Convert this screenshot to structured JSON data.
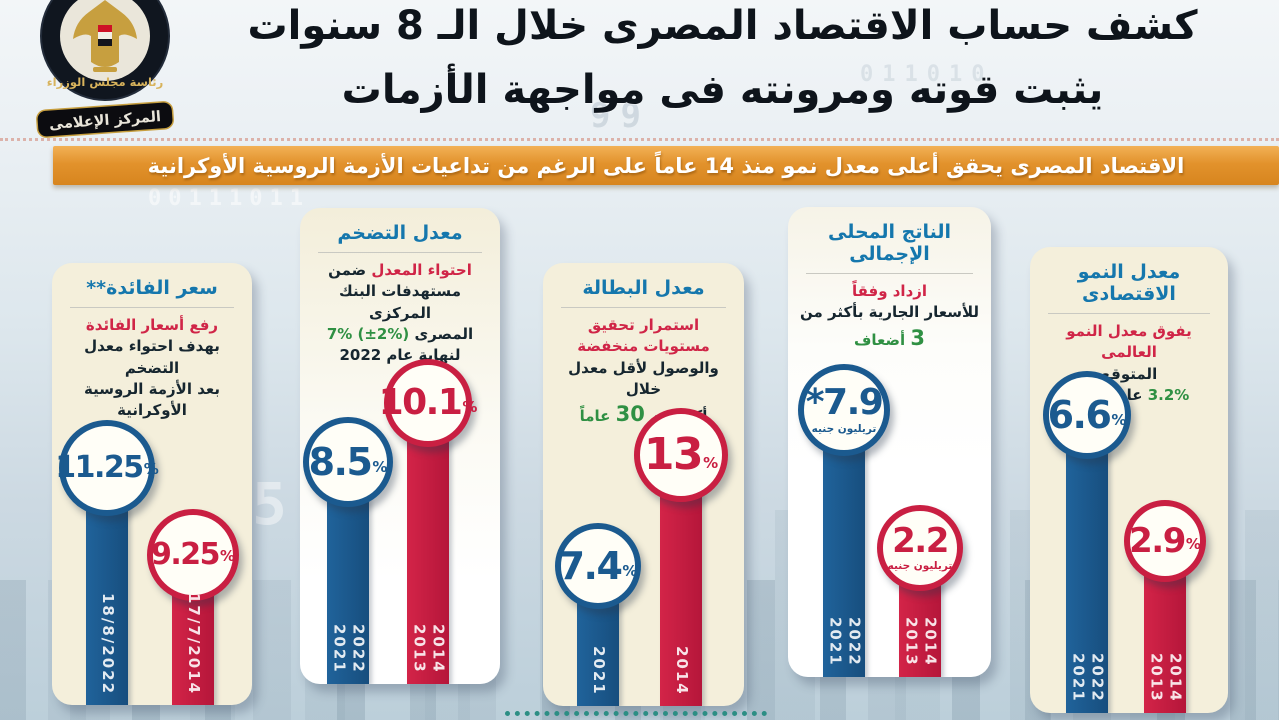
{
  "header": {
    "logo": {
      "ring_text": "رئاسة مجلس الوزراء",
      "ribbon_text": "المركز الإعلامى"
    },
    "title_line1": "كشف حساب الاقتصاد المصرى خلال الـ 8 سنوات",
    "title_line2": "يثبت قوته ومرونته فى مواجهة الأزمات",
    "banner_text": "الاقتصاد المصرى يحقق أعلى معدل نمو منذ 14 عاماً على الرغم من تداعيات الأزمة الروسية الأوكرانية"
  },
  "decor": {
    "digits": [
      "00111011",
      "99",
      "011010",
      "5"
    ]
  },
  "colors": {
    "blue": "#1b5a8f",
    "red": "#c91f42",
    "title_blue": "#1577ad",
    "green": "#2f9043",
    "orange_banner": "#e2922c",
    "card_cream": "#f4efdb"
  },
  "cards": [
    {
      "id": "interest-rate",
      "title": "سعر الفائدة**",
      "desc": [
        [
          {
            "t": "رفع أسعار الفائدة",
            "c": "red"
          }
        ],
        [
          {
            "t": "بهدف احتواء معدل التضخم",
            "c": "dark"
          }
        ],
        [
          {
            "t": "بعد الأزمة الروسية",
            "c": "dark"
          }
        ],
        [
          {
            "t": "الأوكرانية",
            "c": "dark"
          }
        ]
      ],
      "blue": {
        "value": "11.25",
        "suffix": "%",
        "years": [
          "18/8/2022"
        ]
      },
      "red": {
        "value": "9.25",
        "suffix": "%",
        "years": [
          "17/7/2014"
        ]
      }
    },
    {
      "id": "inflation-rate",
      "title": "معدل التضخم",
      "desc": [
        [
          {
            "t": "احتواء المعدل",
            "c": "red"
          },
          {
            "t": " ضمن",
            "c": "dark"
          }
        ],
        [
          {
            "t": "مستهدفات البنك المركزى",
            "c": "dark"
          }
        ],
        [
          {
            "t": "المصرى ",
            "c": "dark"
          },
          {
            "t": "7% (±2%)",
            "c": "green",
            "ltr": true
          }
        ],
        [
          {
            "t": "لنهاية عام 2022",
            "c": "dark"
          }
        ]
      ],
      "blue": {
        "value": "8.5",
        "suffix": "%",
        "years": [
          "2021",
          "2022"
        ]
      },
      "red": {
        "value": "10.1",
        "suffix": "%",
        "years": [
          "2013",
          "2014"
        ]
      }
    },
    {
      "id": "unemployment-rate",
      "title": "معدل البطالة",
      "desc": [
        [
          {
            "t": "استمرار تحقيق",
            "c": "red"
          }
        ],
        [
          {
            "t": "مستويات منخفضة",
            "c": "red"
          }
        ],
        [
          {
            "t": "والوصول لأقل معدل خلال",
            "c": "dark"
          }
        ],
        [
          {
            "t": "أكثر من ",
            "c": "dark"
          },
          {
            "t": "30",
            "c": "green big"
          },
          {
            "t": " عاماً",
            "c": "green"
          }
        ]
      ],
      "blue": {
        "value": "7.4",
        "suffix": "%",
        "years": [
          "2021"
        ]
      },
      "red": {
        "value": "13",
        "suffix": "%",
        "years": [
          "2014"
        ]
      }
    },
    {
      "id": "gdp",
      "title": "الناتج المحلى الإجمالى",
      "desc": [
        [
          {
            "t": "ازداد وفقاً",
            "c": "red"
          }
        ],
        [
          {
            "t": "للأسعار الجارية بأكثر من",
            "c": "dark"
          }
        ],
        [
          {
            "t": "3",
            "c": "green big"
          },
          {
            "t": " أضعاف",
            "c": "green"
          }
        ]
      ],
      "blue": {
        "value": "*7.9",
        "sub": "تريليون جنيه",
        "years": [
          "2021",
          "2022"
        ]
      },
      "red": {
        "value": "2.2",
        "sub": "تريليون جنيه",
        "years": [
          "2013",
          "2014"
        ]
      }
    },
    {
      "id": "growth-rate",
      "title": "معدل النمو الاقتصادى",
      "desc": [
        [
          {
            "t": "يفوق معدل النمو العالمى",
            "c": "red"
          }
        ],
        [
          {
            "t": "المتوقع",
            "c": "dark"
          }
        ],
        [
          {
            "t": "3.2%",
            "c": "green",
            "ltr": true
          },
          {
            "t": " عام 2022",
            "c": "dark"
          }
        ]
      ],
      "blue": {
        "value": "6.6",
        "suffix": "%",
        "years": [
          "2021",
          "2022"
        ]
      },
      "red": {
        "value": "2.9",
        "suffix": "%",
        "years": [
          "2013",
          "2014"
        ]
      }
    }
  ],
  "chart_data": [
    {
      "type": "bar",
      "title": "سعر الفائدة**",
      "unit": "%",
      "categories": [
        "18/8/2022",
        "17/7/2014"
      ],
      "values": [
        11.25,
        9.25
      ],
      "colors": [
        "#1b5a8f",
        "#c91f42"
      ],
      "annotation": "رفع أسعار الفائدة بهدف احتواء معدل التضخم بعد الأزمة الروسية الأوكرانية"
    },
    {
      "type": "bar",
      "title": "معدل التضخم",
      "unit": "%",
      "categories": [
        "2021-2022",
        "2013-2014"
      ],
      "values": [
        8.5,
        10.1
      ],
      "colors": [
        "#1b5a8f",
        "#c91f42"
      ],
      "annotation": "احتواء المعدل ضمن مستهدفات البنك المركزى المصرى 7% (±2%) لنهاية عام 2022"
    },
    {
      "type": "bar",
      "title": "معدل البطالة",
      "unit": "%",
      "categories": [
        "2021",
        "2014"
      ],
      "values": [
        7.4,
        13
      ],
      "colors": [
        "#1b5a8f",
        "#c91f42"
      ],
      "annotation": "استمرار تحقيق مستويات منخفضة والوصول لأقل معدل خلال أكثر من 30 عاماً"
    },
    {
      "type": "bar",
      "title": "الناتج المحلى الإجمالى",
      "unit": "تريليون جنيه",
      "categories": [
        "2021-2022",
        "2013-2014"
      ],
      "values": [
        7.9,
        2.2
      ],
      "colors": [
        "#1b5a8f",
        "#c91f42"
      ],
      "annotation": "ازداد وفقاً للأسعار الجارية بأكثر من 3 أضعاف"
    },
    {
      "type": "bar",
      "title": "معدل النمو الاقتصادى",
      "unit": "%",
      "categories": [
        "2021-2022",
        "2013-2014"
      ],
      "values": [
        6.6,
        2.9
      ],
      "colors": [
        "#1b5a8f",
        "#c91f42"
      ],
      "annotation": "يفوق معدل النمو العالمى المتوقع 3.2% عام 2022"
    }
  ]
}
